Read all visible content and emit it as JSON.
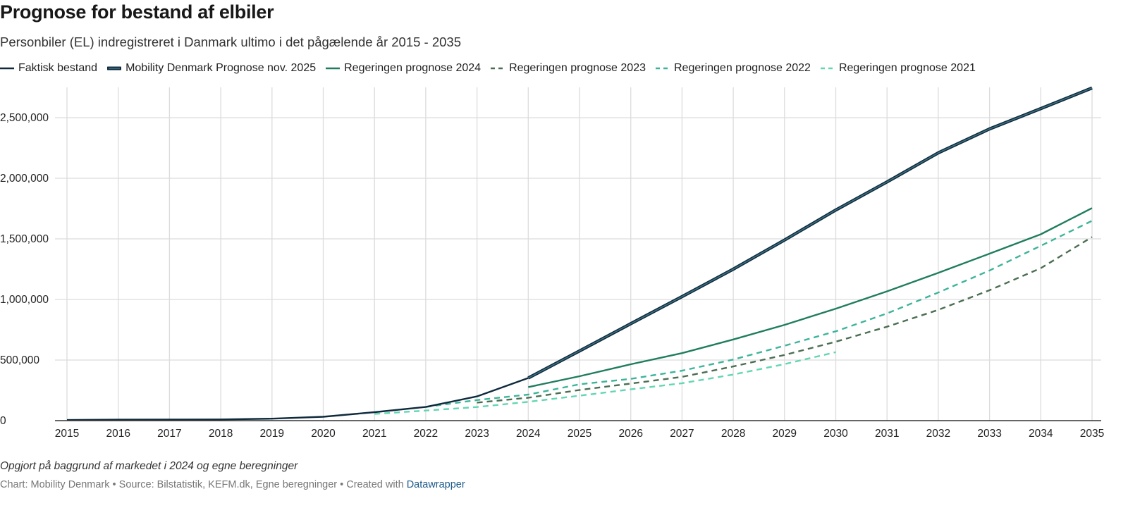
{
  "chart_data": {
    "type": "line",
    "title": "Prognose for bestand af elbiler",
    "subtitle": "Personbiler (EL) indregistreret i Danmark ultimo i det pågælende år 2015 - 2035",
    "x": [
      2015,
      2016,
      2017,
      2018,
      2019,
      2020,
      2021,
      2022,
      2023,
      2024,
      2025,
      2026,
      2027,
      2028,
      2029,
      2030,
      2031,
      2032,
      2033,
      2034,
      2035
    ],
    "x_tick_labels": [
      "2015",
      "2016",
      "2017",
      "2018",
      "2019",
      "2020",
      "2021",
      "2022",
      "2023",
      "2024",
      "2025",
      "2026",
      "2027",
      "2028",
      "2029",
      "2030",
      "2031",
      "2032",
      "2033",
      "2034",
      "2035"
    ],
    "y_ticks": [
      0,
      500000,
      1000000,
      1500000,
      2000000,
      2500000
    ],
    "y_tick_labels": [
      "0",
      "500,000",
      "1,000,000",
      "1,500,000",
      "2,000,000",
      "2,500,000"
    ],
    "ylim": [
      0,
      2750000
    ],
    "xlim": [
      2015,
      2035
    ],
    "grid": true,
    "legend_placement": "top",
    "series": [
      {
        "name": "Faktisk bestand",
        "color": "#0e2a3c",
        "dash": false,
        "style": "thin",
        "values": [
          5000,
          8000,
          9000,
          10000,
          16000,
          32000,
          70000,
          113000,
          200000,
          352000,
          null,
          null,
          null,
          null,
          null,
          null,
          null,
          null,
          null,
          null,
          null
        ]
      },
      {
        "name": "Mobility Denmark Prognose nov. 2025",
        "color": "#2a5566",
        "dash": false,
        "style": "double",
        "values": [
          null,
          null,
          null,
          null,
          null,
          null,
          null,
          null,
          null,
          352000,
          575000,
          800000,
          1023000,
          1250000,
          1490000,
          1738000,
          1970000,
          2210000,
          2407000,
          2575000,
          2745000
        ]
      },
      {
        "name": "Regeringen prognose 2024",
        "color": "#1f7d5e",
        "dash": false,
        "style": "thin",
        "values": [
          null,
          null,
          null,
          null,
          null,
          null,
          null,
          null,
          null,
          277000,
          366000,
          465000,
          557000,
          670000,
          790000,
          924000,
          1067000,
          1220000,
          1378000,
          1538000,
          1754000
        ]
      },
      {
        "name": "Regeringen prognose 2023",
        "color": "#4b6e52",
        "dash": true,
        "style": "thin",
        "values": [
          null,
          null,
          null,
          null,
          null,
          null,
          null,
          null,
          149000,
          189000,
          253000,
          306000,
          361000,
          447000,
          542000,
          651000,
          775000,
          914000,
          1076000,
          1258000,
          1515000
        ]
      },
      {
        "name": "Regeringen prognose 2022",
        "color": "#3db49a",
        "dash": true,
        "style": "thin",
        "values": [
          null,
          null,
          null,
          null,
          null,
          null,
          null,
          113000,
          170000,
          215000,
          300000,
          345000,
          412000,
          504000,
          618000,
          737000,
          885000,
          1057000,
          1239000,
          1443000,
          1649000
        ]
      },
      {
        "name": "Regeringen prognose 2021",
        "color": "#62d6b2",
        "dash": true,
        "style": "thin",
        "values": [
          null,
          null,
          null,
          null,
          null,
          null,
          55000,
          83000,
          112000,
          155000,
          206000,
          258000,
          309000,
          380000,
          466000,
          565000,
          null,
          null,
          null,
          null,
          null
        ]
      }
    ]
  },
  "footer": {
    "note": "Opgjort på baggrund af markedet i 2024 og egne beregninger",
    "credit": "Chart: Mobility Denmark • Source: Bilstatistik, KEFM.dk, Egne beregninger • Created with ",
    "credit_link": "Datawrapper"
  }
}
